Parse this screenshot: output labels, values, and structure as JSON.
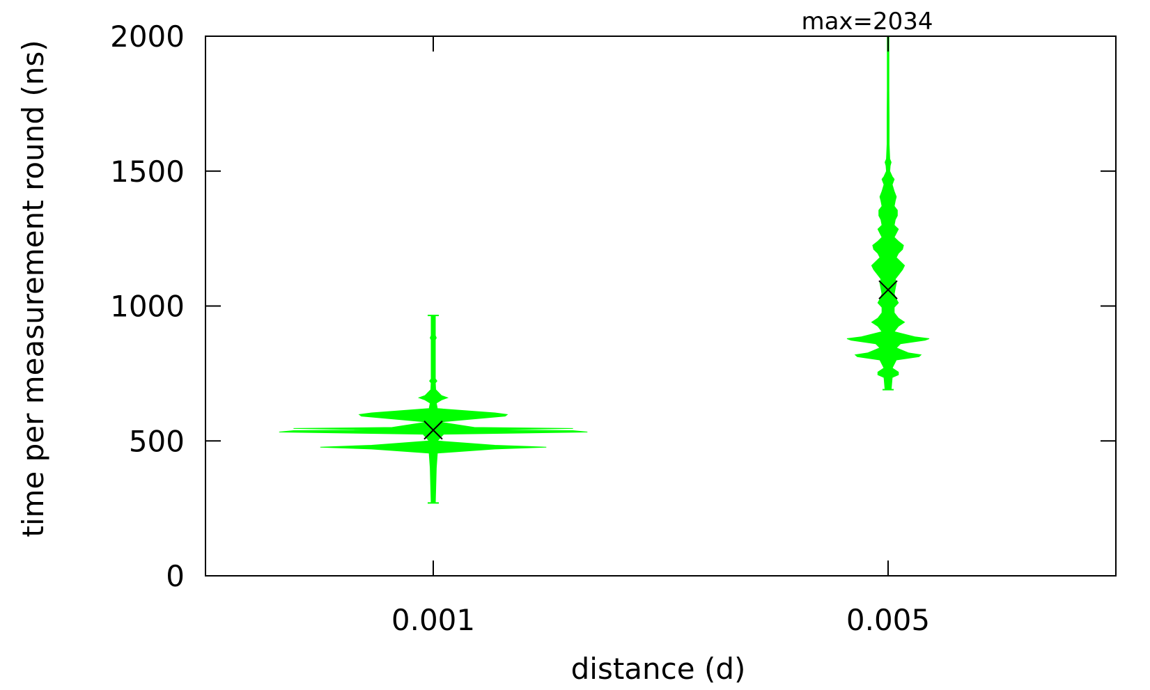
{
  "chart_data": {
    "type": "violin",
    "xlabel": "distance (d)",
    "ylabel": "time per measurement round (ns)",
    "ylim": [
      0,
      2000
    ],
    "yticks": [
      0,
      500,
      1000,
      1500,
      2000
    ],
    "categories": [
      "0.001",
      "0.005"
    ],
    "grid": false,
    "legend": "none",
    "annotation": "max=2034",
    "colors": {
      "violin": "#00ff00",
      "mean_marker": "#000000"
    },
    "series": [
      {
        "category": "0.001",
        "min": 270,
        "max": 965,
        "mean": 540,
        "density": [
          [
            270,
            0.01
          ],
          [
            400,
            0.015
          ],
          [
            455,
            0.02
          ],
          [
            470,
            0.3
          ],
          [
            477,
            0.55
          ],
          [
            484,
            0.3
          ],
          [
            500,
            0.02
          ],
          [
            525,
            0.05
          ],
          [
            533,
            0.75
          ],
          [
            538,
            0.68
          ],
          [
            541,
            0.2
          ],
          [
            546,
            0.68
          ],
          [
            550,
            0.2
          ],
          [
            570,
            0.03
          ],
          [
            592,
            0.35
          ],
          [
            598,
            0.36
          ],
          [
            604,
            0.3
          ],
          [
            620,
            0.02
          ],
          [
            640,
            0.015
          ],
          [
            652,
            0.04
          ],
          [
            660,
            0.07
          ],
          [
            668,
            0.04
          ],
          [
            690,
            0.012
          ],
          [
            715,
            0.01
          ],
          [
            722,
            0.018
          ],
          [
            730,
            0.01
          ],
          [
            800,
            0.01
          ],
          [
            875,
            0.01
          ],
          [
            882,
            0.015
          ],
          [
            890,
            0.01
          ],
          [
            965,
            0.01
          ]
        ]
      },
      {
        "category": "0.005",
        "min": 690,
        "max": 2034,
        "mean": 1060,
        "density": [
          [
            690,
            0.015
          ],
          [
            735,
            0.02
          ],
          [
            745,
            0.05
          ],
          [
            755,
            0.05
          ],
          [
            770,
            0.02
          ],
          [
            800,
            0.04
          ],
          [
            812,
            0.15
          ],
          [
            819,
            0.16
          ],
          [
            826,
            0.1
          ],
          [
            845,
            0.04
          ],
          [
            860,
            0.06
          ],
          [
            873,
            0.18
          ],
          [
            879,
            0.2
          ],
          [
            886,
            0.13
          ],
          [
            905,
            0.03
          ],
          [
            925,
            0.05
          ],
          [
            940,
            0.08
          ],
          [
            955,
            0.05
          ],
          [
            975,
            0.03
          ],
          [
            995,
            0.03
          ],
          [
            1012,
            0.05
          ],
          [
            1025,
            0.04
          ],
          [
            1045,
            0.03
          ],
          [
            1065,
            0.035
          ],
          [
            1085,
            0.04
          ],
          [
            1100,
            0.035
          ],
          [
            1115,
            0.05
          ],
          [
            1135,
            0.07
          ],
          [
            1150,
            0.08
          ],
          [
            1165,
            0.06
          ],
          [
            1180,
            0.04
          ],
          [
            1195,
            0.05
          ],
          [
            1210,
            0.07
          ],
          [
            1225,
            0.075
          ],
          [
            1240,
            0.05
          ],
          [
            1255,
            0.03
          ],
          [
            1270,
            0.04
          ],
          [
            1285,
            0.05
          ],
          [
            1300,
            0.03
          ],
          [
            1320,
            0.035
          ],
          [
            1335,
            0.045
          ],
          [
            1355,
            0.045
          ],
          [
            1370,
            0.03
          ],
          [
            1390,
            0.035
          ],
          [
            1405,
            0.04
          ],
          [
            1425,
            0.03
          ],
          [
            1450,
            0.02
          ],
          [
            1470,
            0.03
          ],
          [
            1480,
            0.02
          ],
          [
            1500,
            0.008
          ],
          [
            1520,
            0.01
          ],
          [
            1533,
            0.015
          ],
          [
            1545,
            0.008
          ],
          [
            1600,
            0.005
          ],
          [
            1700,
            0.005
          ],
          [
            1800,
            0.004
          ],
          [
            1900,
            0.004
          ],
          [
            2034,
            0.004
          ]
        ]
      }
    ]
  }
}
